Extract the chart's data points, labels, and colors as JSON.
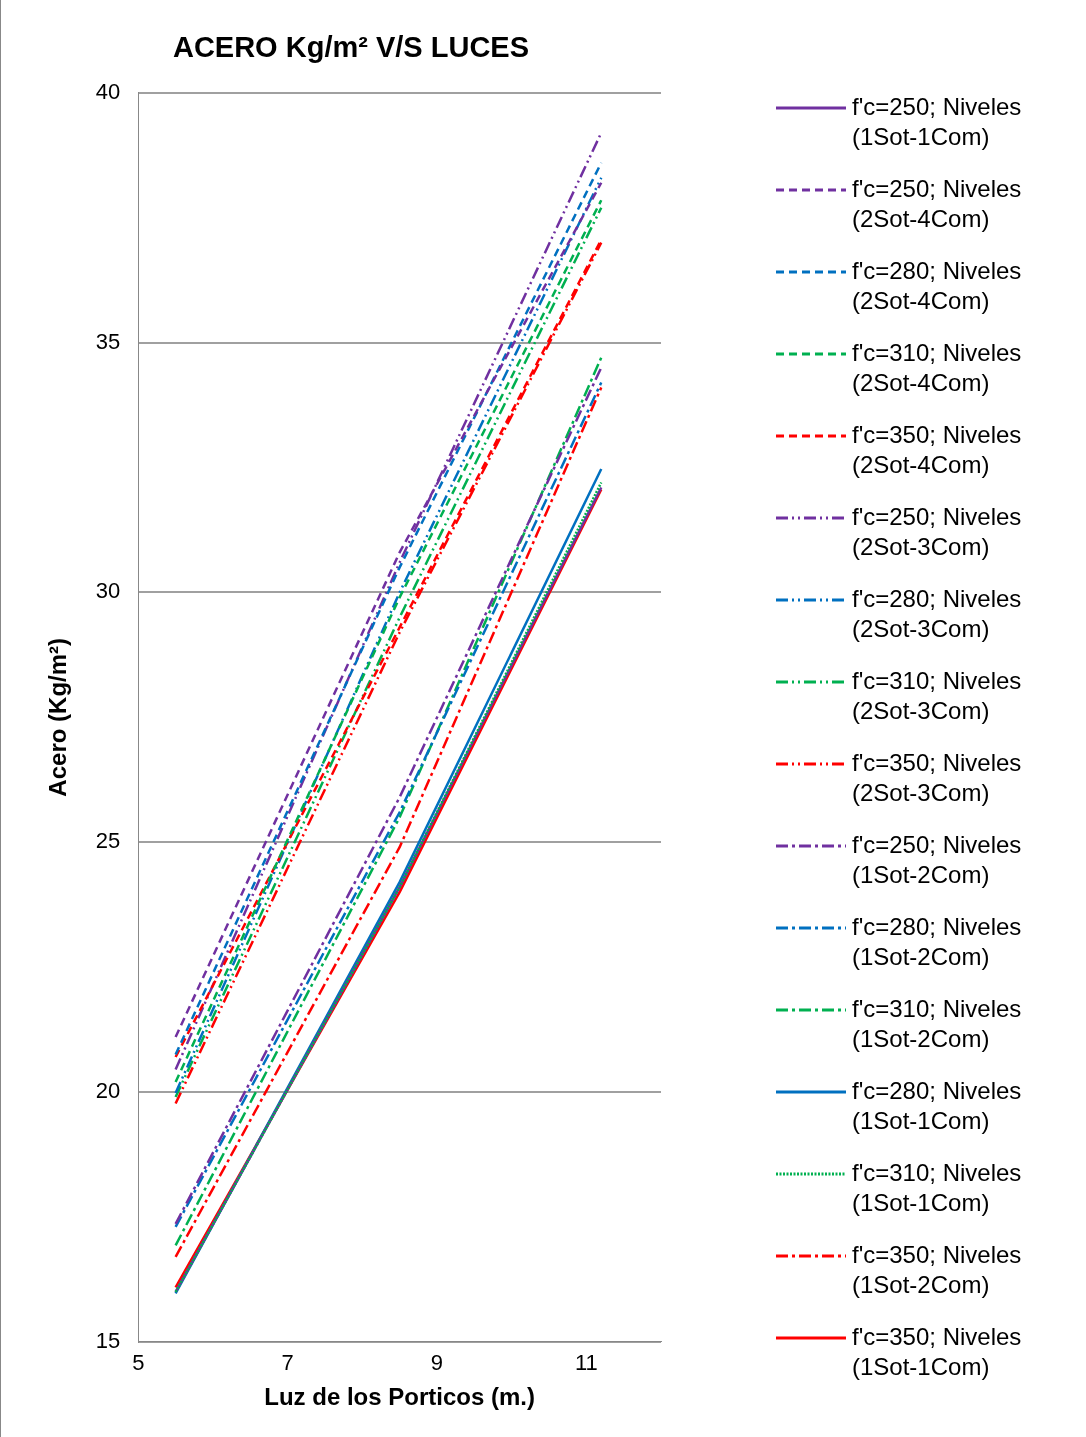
{
  "chart_data": {
    "type": "line",
    "title": "ACERO Kg/m² V/S LUCES",
    "xlabel": "Luz de los Porticos (m.)",
    "ylabel": "Acero (Kg/m²)",
    "x": [
      5.5,
      8.5,
      11.2
    ],
    "xlim": [
      5,
      12
    ],
    "xticks": [
      5,
      7,
      9,
      11
    ],
    "ylim": [
      15,
      40
    ],
    "yticks": [
      15,
      20,
      25,
      30,
      35,
      40
    ],
    "grid": "y",
    "legend": "right",
    "marker": "none",
    "series": [
      {
        "name": "f'c=250; Niveles (1Sot-1Com)",
        "color": "#7030a0",
        "line_style": "solid",
        "values": [
          16.0,
          24.1,
          32.1
        ]
      },
      {
        "name": "f'c=250; Niveles (2Sot-4Com)",
        "color": "#7030a0",
        "line_style": "dashed",
        "values": [
          21.1,
          30.8,
          38.2
        ]
      },
      {
        "name": "f'c=280; Niveles (2Sot-4Com)",
        "color": "#0070c0",
        "line_style": "dashed",
        "values": [
          20.75,
          30.5,
          38.6
        ]
      },
      {
        "name": "f'c=310; Niveles (2Sot-4Com)",
        "color": "#00b050",
        "line_style": "dashed",
        "values": [
          20.2,
          29.9,
          37.85
        ]
      },
      {
        "name": "f'c=350; Niveles (2Sot-4Com)",
        "color": "#ff0000",
        "line_style": "dashed",
        "values": [
          20.7,
          29.3,
          37.06
        ]
      },
      {
        "name": "f'c=250; Niveles (2Sot-3Com)",
        "color": "#7030a0",
        "line_style": "dashdotdot",
        "values": [
          20.45,
          30.6,
          39.2
        ]
      },
      {
        "name": "f'c=280; Niveles (2Sot-3Com)",
        "color": "#0070c0",
        "line_style": "dashdotdot",
        "values": [
          19.98,
          30.0,
          38.3
        ]
      },
      {
        "name": "f'c=310; Niveles (2Sot-3Com)",
        "color": "#00b050",
        "line_style": "dashdotdot",
        "values": [
          19.9,
          29.5,
          37.7
        ]
      },
      {
        "name": "f'c=350; Niveles (2Sot-3Com)",
        "color": "#ff0000",
        "line_style": "dashdotdot",
        "values": [
          19.77,
          29.2,
          37.0
        ]
      },
      {
        "name": "f'c=250; Niveles (1Sot-2Com)",
        "color": "#7030a0",
        "line_style": "dashdot",
        "values": [
          17.36,
          25.9,
          34.5
        ]
      },
      {
        "name": "f'c=280; Niveles (1Sot-2Com)",
        "color": "#0070c0",
        "line_style": "dashdot",
        "values": [
          17.3,
          25.6,
          34.2
        ]
      },
      {
        "name": "f'c=310; Niveles (1Sot-2Com)",
        "color": "#00b050",
        "line_style": "dashdot",
        "values": [
          16.93,
          25.5,
          34.7
        ]
      },
      {
        "name": "f'c=280; Niveles (1Sot-1Com)",
        "color": "#0070c0",
        "line_style": "solid",
        "values": [
          15.97,
          24.2,
          32.47
        ]
      },
      {
        "name": "f'c=310; Niveles (1Sot-1Com)",
        "color": "#00b050",
        "line_style": "dotted",
        "values": [
          16.0,
          24.1,
          32.2
        ]
      },
      {
        "name": "f'c=350; Niveles (1Sot-2Com)",
        "color": "#ff0000",
        "line_style": "dashdot",
        "values": [
          16.7,
          24.9,
          34.1
        ]
      },
      {
        "name": "f'c=350; Niveles (1Sot-1Com)",
        "color": "#ff0000",
        "line_style": "solid",
        "values": [
          16.09,
          24.0,
          32.06
        ]
      }
    ]
  }
}
